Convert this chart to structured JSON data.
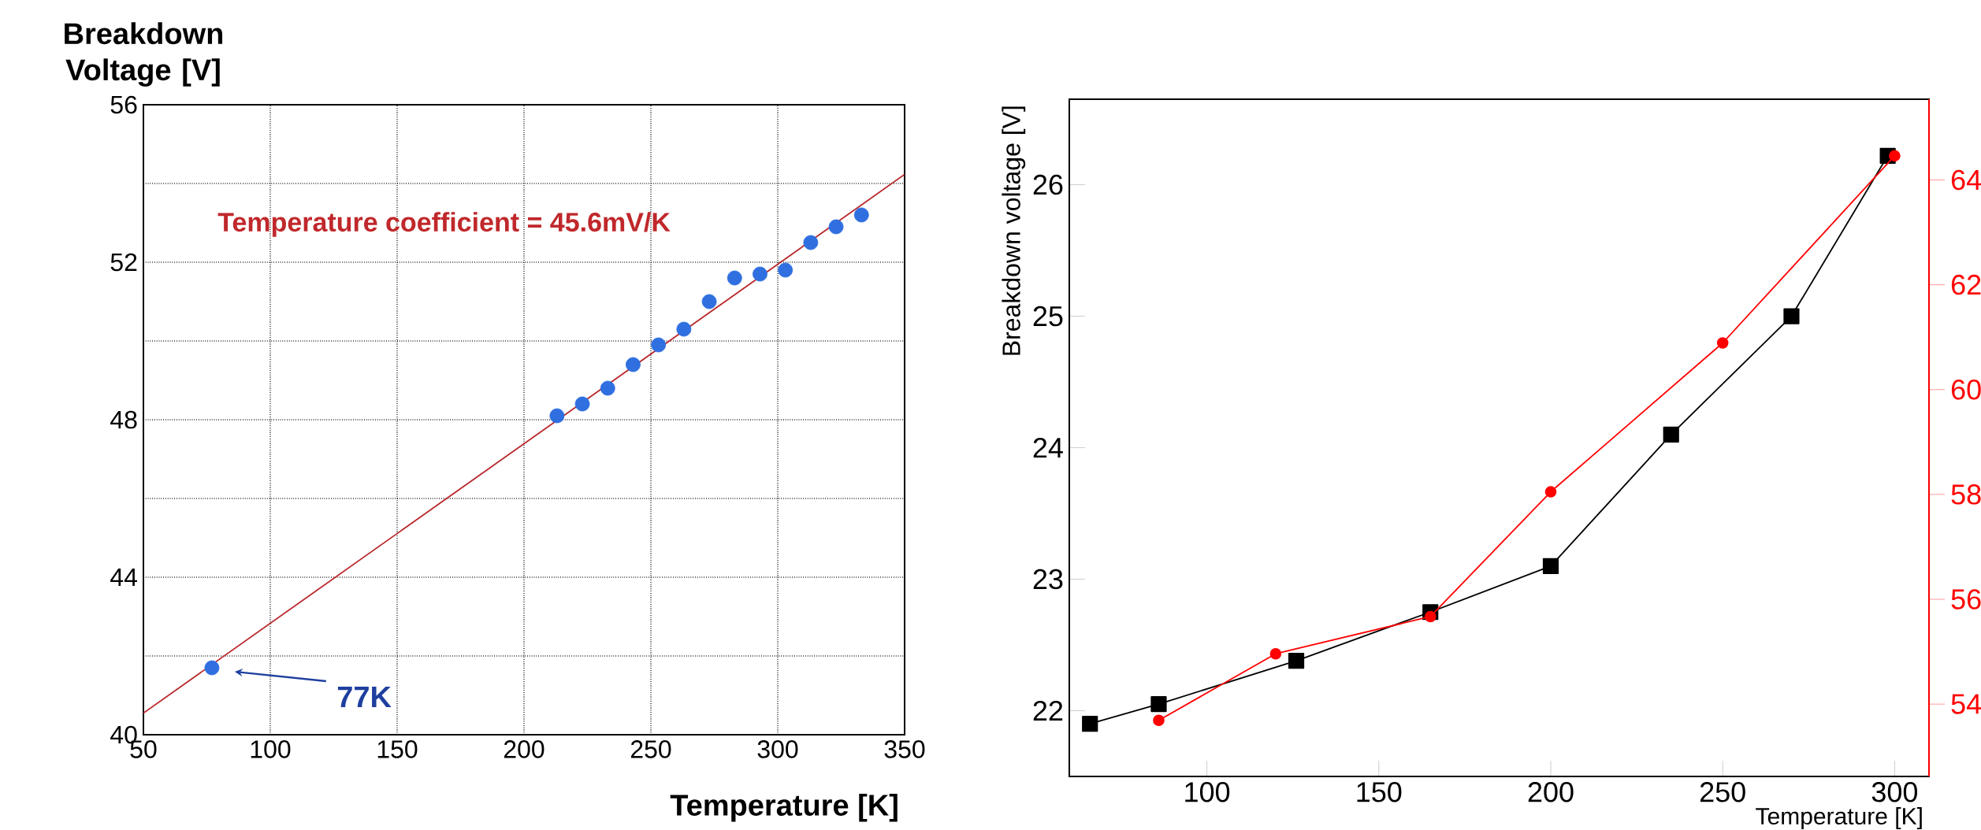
{
  "chart_data": [
    {
      "type": "scatter",
      "ylabel": "Breakdown Voltage [V]",
      "xlabel": "Temperature [K]",
      "xlim": [
        50,
        350
      ],
      "ylim": [
        40,
        56
      ],
      "xticks": [
        50,
        100,
        150,
        200,
        250,
        300,
        350
      ],
      "yticks": [
        40,
        {
          "value": 42,
          "label": null
        },
        44,
        {
          "value": 46,
          "label": null
        },
        48,
        {
          "value": 50,
          "label": null
        },
        52,
        {
          "value": 54,
          "label": null
        },
        56
      ],
      "grid": true,
      "series": [
        {
          "type": "line",
          "color": "#b8282c",
          "marker": "none",
          "x": [
            50,
            350
          ],
          "values": [
            40.55,
            54.23
          ]
        },
        {
          "type": "scatter",
          "color": "#2f6fe0",
          "marker": "circle",
          "x": [
            77,
            213,
            223,
            233,
            243,
            253,
            263,
            273,
            283,
            293,
            303,
            313,
            323,
            333
          ],
          "values": [
            41.7,
            48.1,
            48.4,
            48.8,
            49.4,
            49.9,
            50.3,
            51.0,
            51.6,
            51.7,
            51.8,
            52.5,
            52.9,
            53.2
          ]
        }
      ],
      "annotations": [
        "Temperature coefficient = 45.6mV/K",
        "77K"
      ]
    },
    {
      "type": "line",
      "ylabel": "Breakdown voltage [V]",
      "xlabel": "Temperature [K]",
      "xlim": [
        60,
        310
      ],
      "ylim": [
        21.5,
        26.65
      ],
      "y2lim": [
        52.62,
        65.54
      ],
      "xticks": [
        100,
        150,
        200,
        250,
        300
      ],
      "yticks": [
        22,
        23,
        24,
        25,
        26
      ],
      "y2ticks": [
        54,
        56,
        58,
        60,
        62,
        64
      ],
      "series": [
        {
          "color": "#000000",
          "marker": "square",
          "x": [
            66,
            86,
            126,
            165,
            200,
            235,
            270,
            298
          ],
          "values": [
            21.9,
            22.05,
            22.38,
            22.75,
            23.1,
            24.1,
            25.0,
            26.22
          ]
        },
        {
          "color": "#ff0000",
          "marker": "circle",
          "axis": "y2",
          "x": [
            86,
            120,
            165,
            200,
            250,
            300
          ],
          "values": [
            53.69,
            54.96,
            55.67,
            58.05,
            60.89,
            64.46
          ]
        }
      ]
    }
  ]
}
